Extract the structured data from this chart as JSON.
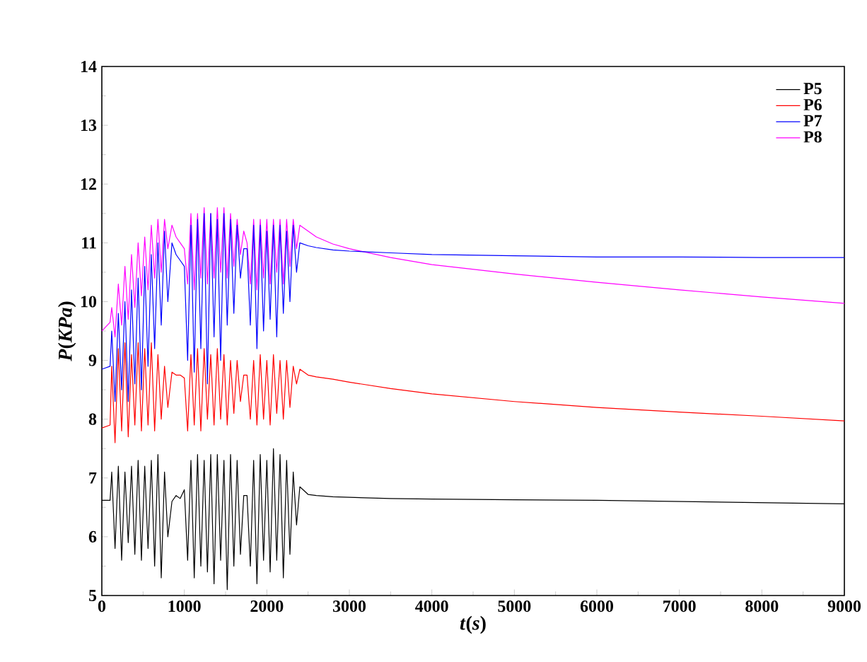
{
  "chart_data": {
    "type": "line",
    "xlabel": "*t*(*s*)",
    "ylabel": "*P*(*KPa*)",
    "xlim": [
      0,
      9000
    ],
    "ylim": [
      5,
      14
    ],
    "xticks": [
      0,
      1000,
      2000,
      3000,
      4000,
      5000,
      6000,
      7000,
      8000,
      9000
    ],
    "yticks": [
      5,
      6,
      7,
      8,
      9,
      10,
      11,
      12,
      13,
      14
    ],
    "legend": "top right",
    "x": [
      0,
      100,
      120,
      160,
      200,
      240,
      280,
      320,
      360,
      400,
      440,
      480,
      520,
      560,
      600,
      640,
      680,
      720,
      760,
      800,
      850,
      900,
      950,
      1000,
      1040,
      1080,
      1120,
      1160,
      1200,
      1240,
      1280,
      1320,
      1360,
      1400,
      1440,
      1480,
      1520,
      1560,
      1600,
      1640,
      1680,
      1720,
      1760,
      1800,
      1840,
      1880,
      1920,
      1960,
      2000,
      2040,
      2080,
      2120,
      2160,
      2200,
      2240,
      2280,
      2320,
      2360,
      2400,
      2500,
      2600,
      2800,
      3000,
      3500,
      4000,
      5000,
      6000,
      7000,
      8000,
      9000
    ],
    "series": [
      {
        "name": "P5",
        "color": "#000000",
        "values": [
          6.62,
          6.62,
          7.1,
          5.8,
          7.2,
          5.6,
          7.1,
          5.9,
          7.2,
          5.7,
          7.3,
          5.6,
          7.2,
          5.8,
          7.3,
          5.5,
          7.4,
          5.3,
          7.1,
          6.0,
          6.6,
          6.7,
          6.65,
          6.8,
          5.6,
          7.3,
          5.3,
          7.4,
          5.5,
          7.3,
          5.4,
          7.4,
          5.2,
          7.4,
          5.6,
          7.3,
          5.1,
          7.4,
          5.5,
          7.3,
          5.7,
          6.7,
          6.7,
          5.5,
          7.3,
          5.2,
          7.4,
          5.6,
          7.3,
          5.4,
          7.5,
          5.6,
          7.4,
          5.3,
          7.3,
          5.7,
          7.1,
          6.2,
          6.85,
          6.72,
          6.7,
          6.68,
          6.67,
          6.65,
          6.64,
          6.63,
          6.62,
          6.6,
          6.58,
          6.56
        ]
      },
      {
        "name": "P6",
        "color": "#ff0000",
        "values": [
          7.85,
          7.9,
          8.9,
          7.6,
          9.2,
          7.8,
          9.3,
          7.7,
          9.1,
          7.9,
          9.3,
          7.8,
          9.2,
          7.9,
          9.3,
          7.8,
          9.1,
          8.0,
          8.9,
          8.2,
          8.8,
          8.75,
          8.75,
          8.7,
          7.8,
          9.1,
          7.9,
          9.2,
          7.8,
          9.2,
          8.0,
          9.1,
          7.9,
          9.2,
          8.0,
          9.1,
          7.9,
          9.0,
          8.1,
          9.0,
          8.3,
          8.75,
          8.75,
          8.0,
          9.0,
          7.9,
          9.1,
          8.0,
          9.0,
          7.9,
          9.1,
          8.1,
          9.0,
          8.0,
          9.0,
          8.2,
          8.9,
          8.6,
          8.85,
          8.75,
          8.72,
          8.68,
          8.63,
          8.52,
          8.43,
          8.3,
          8.2,
          8.12,
          8.05,
          7.97
        ]
      },
      {
        "name": "P7",
        "color": "#0000ff",
        "values": [
          8.85,
          8.9,
          9.5,
          8.3,
          9.8,
          8.5,
          10.0,
          8.3,
          10.2,
          8.6,
          10.4,
          8.5,
          10.6,
          8.9,
          10.8,
          9.2,
          11.0,
          9.6,
          11.2,
          10.0,
          11.0,
          10.8,
          10.7,
          10.6,
          9.0,
          11.3,
          8.8,
          11.4,
          9.2,
          11.5,
          8.6,
          11.5,
          9.4,
          11.4,
          9.0,
          11.5,
          9.6,
          11.4,
          9.8,
          11.3,
          10.4,
          10.9,
          10.9,
          9.6,
          11.3,
          9.2,
          11.3,
          9.5,
          11.2,
          9.7,
          11.3,
          9.4,
          11.3,
          9.8,
          11.2,
          10.0,
          11.3,
          10.5,
          11.0,
          10.95,
          10.92,
          10.88,
          10.86,
          10.83,
          10.8,
          10.78,
          10.76,
          10.76,
          10.75,
          10.75
        ]
      },
      {
        "name": "P8",
        "color": "#ff00ff",
        "values": [
          9.5,
          9.65,
          9.9,
          9.4,
          10.3,
          9.6,
          10.6,
          9.7,
          10.8,
          9.9,
          11.0,
          10.1,
          11.1,
          10.2,
          11.3,
          10.4,
          11.4,
          10.5,
          11.4,
          10.9,
          11.3,
          11.1,
          11.0,
          10.9,
          10.3,
          11.5,
          10.2,
          11.5,
          10.4,
          11.6,
          10.3,
          11.5,
          10.4,
          11.6,
          10.5,
          11.6,
          10.4,
          11.5,
          10.6,
          11.4,
          10.8,
          11.2,
          11.0,
          10.3,
          11.4,
          10.2,
          11.4,
          10.4,
          11.4,
          10.3,
          11.4,
          10.5,
          11.4,
          10.3,
          11.4,
          10.6,
          11.4,
          10.9,
          11.3,
          11.2,
          11.1,
          10.98,
          10.9,
          10.75,
          10.63,
          10.47,
          10.33,
          10.2,
          10.08,
          9.97
        ]
      }
    ]
  }
}
